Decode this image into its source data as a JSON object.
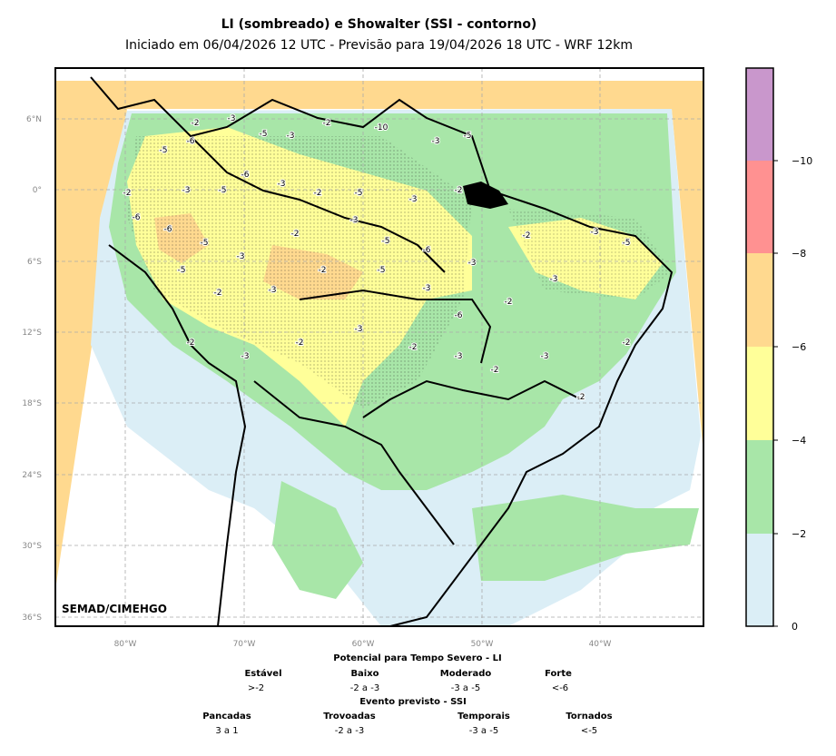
{
  "title": "LI (sombreado) e Showalter (SSI - contorno)",
  "subtitle": "Iniciado em 06/04/2026 12 UTC - Previsão para 19/04/2026 18 UTC - WRF 12km",
  "credit": "SEMAD/CIMEHGO",
  "lat_ticks": [
    "6°N",
    "0°",
    "6°S",
    "12°S",
    "18°S",
    "24°S",
    "30°S",
    "36°S"
  ],
  "lon_ticks": [
    "80°W",
    "70°W",
    "60°W",
    "50°W",
    "40°W"
  ],
  "colorbar": {
    "ticks": [
      "0",
      "−2",
      "−4",
      "−6",
      "−8",
      "−10"
    ],
    "colors": [
      "#dbeef6",
      "#a8e6a8",
      "#ffff99",
      "#ffd98f",
      "#ff9191",
      "#c997cc"
    ]
  },
  "legend": {
    "li_title": "Potencial para Tempo Severo - LI",
    "li": [
      {
        "name": "Estável",
        "value": ">-2"
      },
      {
        "name": "Baixo",
        "value": "-2 a -3"
      },
      {
        "name": "Moderado",
        "value": "-3 a -5"
      },
      {
        "name": "Forte",
        "value": "<-6"
      }
    ],
    "ssi_title": "Evento previsto - SSI",
    "ssi": [
      {
        "name": "Pancadas",
        "value": "3 a 1"
      },
      {
        "name": "Trovoadas",
        "value": "-2 a -3"
      },
      {
        "name": "Temporais",
        "value": "-3 a -5"
      },
      {
        "name": "Tornados",
        "value": "<-5"
      }
    ]
  },
  "contour_labels": [
    "-2",
    "-3",
    "-5",
    "-6",
    "-5",
    "-3",
    "-2",
    "-10",
    "-3",
    "-5",
    "-6",
    "-2",
    "-3",
    "-5",
    "-6",
    "-3",
    "-2",
    "-5",
    "-3",
    "-2",
    "-6",
    "-5",
    "-3",
    "-2",
    "-3",
    "-5",
    "-6",
    "-3",
    "-2",
    "-3",
    "-5",
    "-2",
    "-3",
    "-2",
    "-5",
    "-3",
    "-6",
    "-2",
    "-3",
    "-5",
    "-2",
    "-3",
    "-2",
    "-3",
    "-2",
    "-3",
    "-2",
    "-3",
    "-2",
    "-2"
  ]
}
